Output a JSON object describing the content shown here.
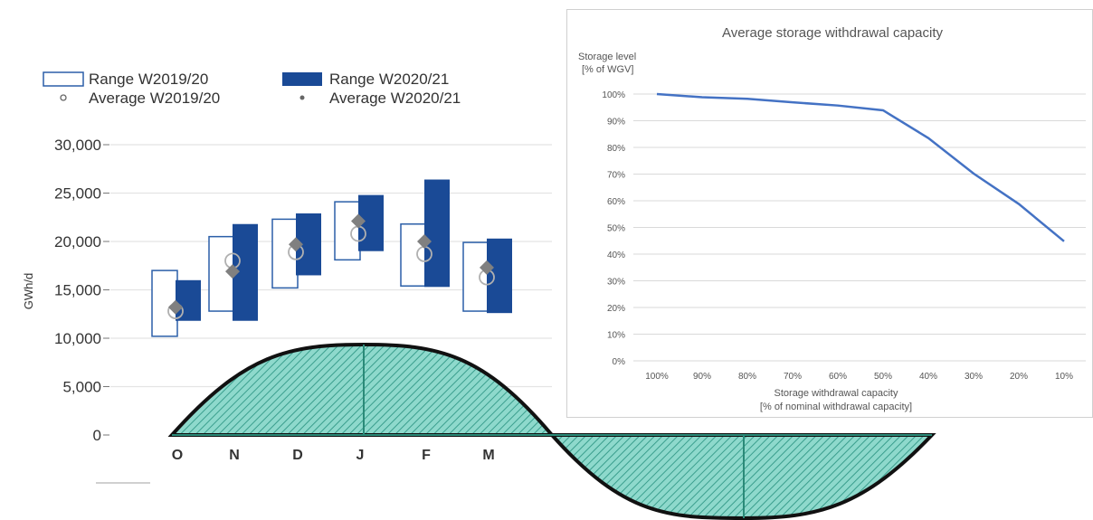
{
  "left_chart": {
    "yaxis_label": "GWh/d",
    "legend": [
      {
        "label": "Range W2019/20",
        "marker": "open-box"
      },
      {
        "label": "Range W2020/21",
        "marker": "filled-box"
      },
      {
        "label": "Average W2019/20",
        "marker": "open-circle"
      },
      {
        "label": "Average W2020/21",
        "marker": "diamond"
      }
    ],
    "colors": {
      "range_2021": "#1a4a96",
      "range_2019_stroke": "#2b5fa8",
      "avg_2021": "#808080",
      "wave_fill": "#7fd3c4",
      "wave_stroke": "#111111",
      "grid": "#e4e4e4"
    }
  },
  "right_chart": {
    "title": "Average storage withdrawal capacity",
    "ylabel_line1": "Storage level",
    "ylabel_line2": "[% of WGV]",
    "xlabel_line1": "Storage withdrawal capacity",
    "xlabel_line2": "[% of nominal withdrawal capacity]",
    "line_color": "#4472c4"
  },
  "chart_data": [
    {
      "type": "bar",
      "categories": [
        "O",
        "N",
        "D",
        "J",
        "F",
        "M"
      ],
      "ylabel": "GWh/d",
      "ylim": [
        0,
        30000
      ],
      "yticks": [
        0,
        5000,
        10000,
        15000,
        20000,
        25000,
        30000
      ],
      "ytick_labels": [
        "0",
        "5,000",
        "10,000",
        "15,000",
        "20,000",
        "25,000",
        "30,000"
      ],
      "series": [
        {
          "name": "Range W2019/20",
          "low": [
            10200,
            12800,
            15200,
            18100,
            15400,
            12800
          ],
          "high": [
            17000,
            20500,
            22300,
            24100,
            21800,
            19900
          ]
        },
        {
          "name": "Range W2020/21",
          "low": [
            11800,
            11800,
            16500,
            19000,
            15300,
            12600
          ],
          "high": [
            16000,
            21800,
            22900,
            24800,
            26400,
            20300
          ]
        },
        {
          "name": "Average W2019/20",
          "values": [
            12800,
            18000,
            18900,
            20800,
            18700,
            16300
          ]
        },
        {
          "name": "Average W2020/21",
          "values": [
            13200,
            16900,
            19700,
            22100,
            20000,
            17300
          ]
        }
      ]
    },
    {
      "type": "line",
      "title": "Average storage withdrawal capacity",
      "xlabel": "Storage withdrawal capacity [% of nominal withdrawal capacity]",
      "ylabel": "Storage level [% of WGV]",
      "x": [
        "100%",
        "90%",
        "80%",
        "70%",
        "60%",
        "50%",
        "40%",
        "30%",
        "20%",
        "10%"
      ],
      "ylim": [
        0,
        100
      ],
      "yticks": [
        0,
        10,
        20,
        30,
        40,
        50,
        60,
        70,
        80,
        90,
        100
      ],
      "ytick_labels": [
        "0%",
        "10%",
        "20%",
        "30%",
        "40%",
        "50%",
        "60%",
        "70%",
        "80%",
        "90%",
        "100%"
      ],
      "grid": true,
      "series": [
        {
          "values": [
            100,
            98.8,
            98.2,
            96.9,
            95.7,
            93.9,
            83.5,
            70.2,
            58.8,
            44.8
          ]
        }
      ]
    }
  ]
}
